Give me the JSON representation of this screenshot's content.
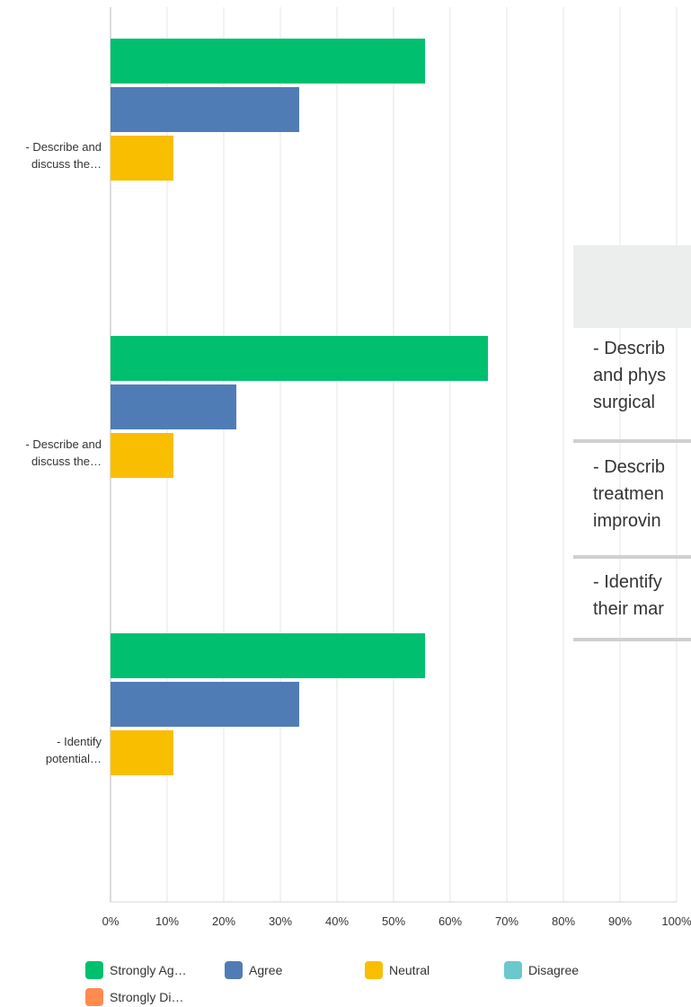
{
  "chart_data": {
    "type": "bar",
    "orientation": "horizontal",
    "categories": [
      "- Describe and discuss the…",
      "- Describe and discuss the…",
      "- Identify potential…"
    ],
    "category_lines": [
      [
        "- Describe and",
        "discuss the…"
      ],
      [
        "- Describe and",
        "discuss the…"
      ],
      [
        "- Identify",
        "potential…"
      ]
    ],
    "series": [
      {
        "name": "Strongly Ag…",
        "color": "#00bf6f",
        "values": [
          55.56,
          66.67,
          55.56
        ]
      },
      {
        "name": "Agree",
        "color": "#507cb6",
        "values": [
          33.33,
          22.22,
          33.33
        ]
      },
      {
        "name": "Neutral",
        "color": "#f9be00",
        "values": [
          11.11,
          11.11,
          11.11
        ]
      },
      {
        "name": "Disagree",
        "color": "#6bc8cd",
        "values": [
          0,
          0,
          0
        ]
      },
      {
        "name": "Strongly Di…",
        "color": "#ff8b4f",
        "values": [
          0,
          0,
          0
        ]
      }
    ],
    "xlim": [
      0,
      100
    ],
    "xticks": [
      "0%",
      "10%",
      "20%",
      "30%",
      "40%",
      "50%",
      "60%",
      "70%",
      "80%",
      "90%",
      "100%"
    ],
    "grid": true,
    "legend": "bottom"
  },
  "overlay_table": {
    "rows": [
      [
        "- Describ",
        "and phys",
        "surgical"
      ],
      [
        "- Describ",
        "treatmen",
        "improvin"
      ],
      [
        "- Identify",
        "their mar"
      ]
    ]
  }
}
